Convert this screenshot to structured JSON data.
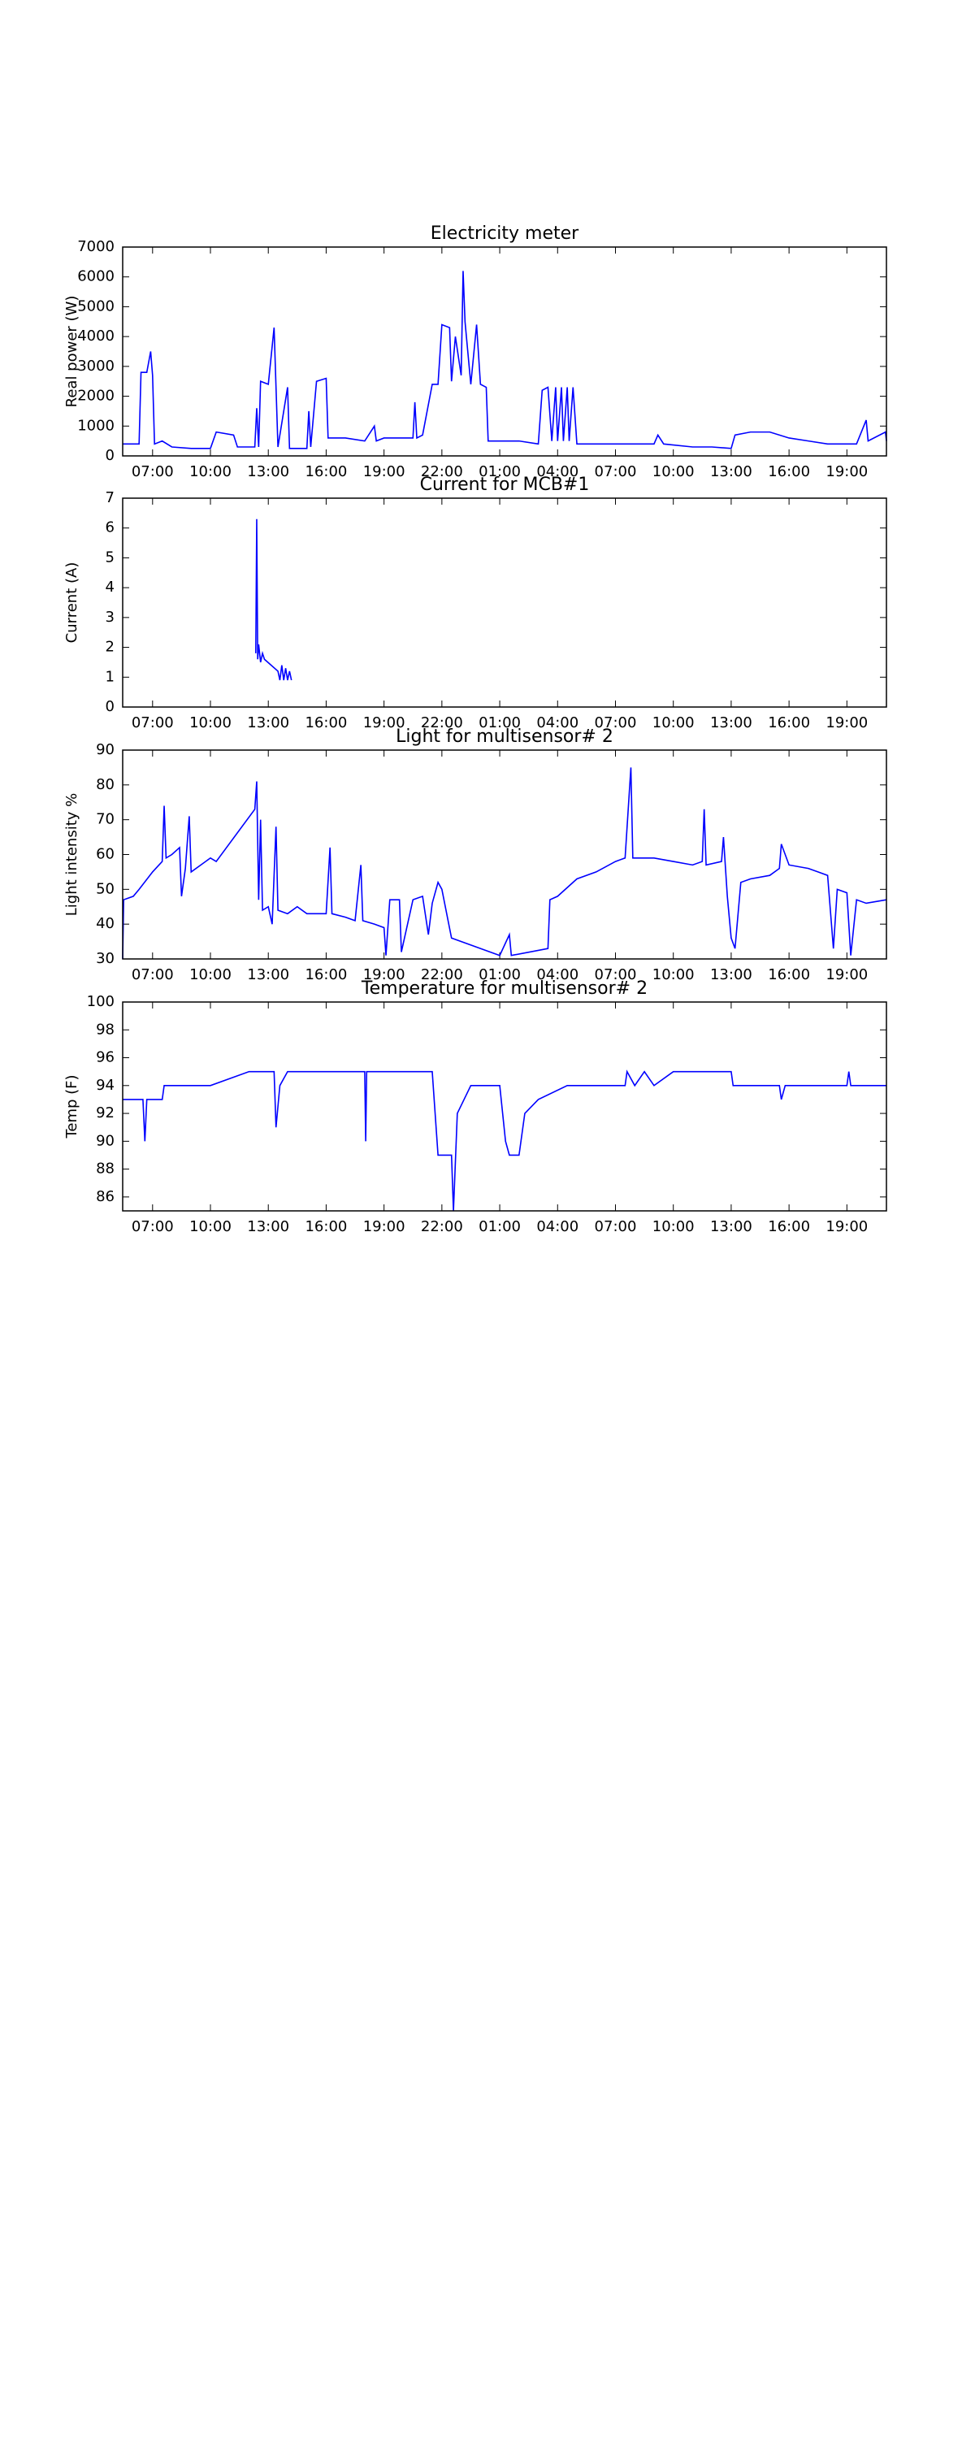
{
  "chart_data": [
    {
      "type": "line",
      "title": "Electricity meter",
      "y_label": "Real power (W)",
      "color": "#0000ff",
      "x": [
        5.45,
        6.3,
        6.4,
        6.7,
        6.9,
        7.0,
        7.1,
        7.5,
        8,
        9,
        10,
        10.3,
        11.2,
        11.4,
        12.3,
        12.4,
        12.5,
        12.6,
        13.0,
        13.3,
        13.5,
        14,
        14.1,
        15,
        15.1,
        15.2,
        15.5,
        16,
        16.1,
        17,
        18,
        18.5,
        18.6,
        19,
        20,
        20.5,
        20.6,
        20.7,
        21,
        21.5,
        21.8,
        22.0,
        22.4,
        22.5,
        22.7,
        23.0,
        23.1,
        23.2,
        23.5,
        23.8,
        24,
        24.3,
        24.4,
        25,
        26,
        27,
        27.2,
        27.5,
        27.7,
        27.9,
        28,
        28.2,
        28.3,
        28.5,
        28.6,
        28.8,
        29,
        30,
        31,
        33,
        33.2,
        33.5,
        35,
        36,
        37,
        37.2,
        38,
        39,
        40,
        41,
        42,
        43.5,
        44,
        44.1,
        45,
        45.05
      ],
      "values": [
        400,
        400,
        2800,
        2800,
        3500,
        2700,
        400,
        500,
        300,
        250,
        250,
        800,
        700,
        300,
        300,
        1600,
        300,
        2500,
        2400,
        4300,
        300,
        2300,
        250,
        250,
        1500,
        300,
        2500,
        2600,
        600,
        600,
        500,
        1000,
        500,
        600,
        600,
        600,
        1800,
        600,
        700,
        2400,
        2400,
        4400,
        4300,
        2500,
        4000,
        2700,
        6200,
        4500,
        2400,
        4400,
        2400,
        2300,
        500,
        500,
        500,
        400,
        2200,
        2300,
        500,
        2300,
        500,
        2300,
        500,
        2300,
        500,
        2300,
        400,
        400,
        400,
        400,
        700,
        400,
        300,
        300,
        250,
        700,
        800,
        800,
        600,
        500,
        400,
        400,
        1200,
        500,
        800,
        500
      ],
      "xlim": [
        5.45,
        45.05
      ],
      "xticks": [
        {
          "value": 7,
          "label": "07:00"
        },
        {
          "value": 10,
          "label": "10:00"
        },
        {
          "value": 13,
          "label": "13:00"
        },
        {
          "value": 16,
          "label": "16:00"
        },
        {
          "value": 19,
          "label": "19:00"
        },
        {
          "value": 22,
          "label": "22:00"
        },
        {
          "value": 25,
          "label": "01:00"
        },
        {
          "value": 28,
          "label": "04:00"
        },
        {
          "value": 31,
          "label": "07:00"
        },
        {
          "value": 34,
          "label": "10:00"
        },
        {
          "value": 37,
          "label": "13:00"
        },
        {
          "value": 40,
          "label": "16:00"
        },
        {
          "value": 43,
          "label": "19:00"
        }
      ],
      "ylim": [
        0,
        7000
      ],
      "yticks": [
        0,
        1000,
        2000,
        3000,
        4000,
        5000,
        6000,
        7000
      ]
    },
    {
      "type": "line",
      "title": "Current for MCB#1",
      "y_label": "Current (A)",
      "color": "#0000ff",
      "x": [
        12.35,
        12.4,
        12.45,
        12.5,
        12.6,
        12.7,
        12.8,
        13.5,
        13.6,
        13.7,
        13.8,
        13.9,
        14.0,
        14.1,
        14.2
      ],
      "values": [
        1.8,
        6.3,
        1.6,
        2.1,
        1.5,
        1.8,
        1.6,
        1.2,
        0.9,
        1.4,
        0.9,
        1.3,
        0.9,
        1.2,
        0.9
      ],
      "xlim": [
        5.45,
        45.05
      ],
      "xticks": [
        {
          "value": 7,
          "label": "07:00"
        },
        {
          "value": 10,
          "label": "10:00"
        },
        {
          "value": 13,
          "label": "13:00"
        },
        {
          "value": 16,
          "label": "16:00"
        },
        {
          "value": 19,
          "label": "19:00"
        },
        {
          "value": 22,
          "label": "22:00"
        },
        {
          "value": 25,
          "label": "01:00"
        },
        {
          "value": 28,
          "label": "04:00"
        },
        {
          "value": 31,
          "label": "07:00"
        },
        {
          "value": 34,
          "label": "10:00"
        },
        {
          "value": 37,
          "label": "13:00"
        },
        {
          "value": 40,
          "label": "16:00"
        },
        {
          "value": 43,
          "label": "19:00"
        }
      ],
      "ylim": [
        0,
        7
      ],
      "yticks": [
        0,
        1,
        2,
        3,
        4,
        5,
        6,
        7
      ]
    },
    {
      "type": "line",
      "title": "Light for multisensor# 2",
      "y_label": "Light intensity %",
      "color": "#0000ff",
      "x": [
        5.45,
        5.5,
        6,
        6.3,
        7,
        7.5,
        7.6,
        7.7,
        8,
        8.4,
        8.5,
        8.7,
        8.9,
        9,
        9.5,
        10,
        10.3,
        12.3,
        12.4,
        12.5,
        12.6,
        12.7,
        13,
        13.2,
        13.4,
        13.5,
        14,
        14.5,
        15,
        16,
        16.2,
        16.3,
        17,
        17.5,
        17.8,
        17.9,
        18.5,
        19,
        19.1,
        19.3,
        19.8,
        19.9,
        20.5,
        21,
        21.3,
        21.5,
        21.8,
        22,
        22.5,
        25,
        25.5,
        25.6,
        27.5,
        27.6,
        28,
        29,
        30,
        31,
        31.5,
        31.8,
        31.9,
        33,
        34,
        35,
        35.5,
        35.6,
        35.7,
        36.5,
        36.6,
        36.8,
        37,
        37.2,
        37.5,
        38,
        39,
        39.5,
        39.6,
        40,
        41,
        41.5,
        42,
        42.3,
        42.5,
        43,
        43.2,
        43.5,
        44,
        45.05
      ],
      "values": [
        30,
        47,
        48,
        50,
        55,
        58,
        74,
        59,
        60,
        62,
        48,
        56,
        71,
        55,
        57,
        59,
        58,
        73,
        81,
        47,
        70,
        44,
        45,
        40,
        68,
        44,
        43,
        45,
        43,
        43,
        62,
        43,
        42,
        41,
        57,
        41,
        40,
        39,
        31,
        47,
        47,
        32,
        47,
        48,
        37,
        46,
        52,
        50,
        36,
        31,
        37,
        31,
        33,
        47,
        48,
        53,
        55,
        58,
        59,
        85,
        59,
        59,
        58,
        57,
        58,
        73,
        57,
        58,
        65,
        48,
        36,
        33,
        52,
        53,
        54,
        56,
        63,
        57,
        56,
        55,
        54,
        33,
        50,
        49,
        31,
        47,
        46,
        47
      ],
      "xlim": [
        5.45,
        45.05
      ],
      "xticks": [
        {
          "value": 7,
          "label": "07:00"
        },
        {
          "value": 10,
          "label": "10:00"
        },
        {
          "value": 13,
          "label": "13:00"
        },
        {
          "value": 16,
          "label": "16:00"
        },
        {
          "value": 19,
          "label": "19:00"
        },
        {
          "value": 22,
          "label": "22:00"
        },
        {
          "value": 25,
          "label": "01:00"
        },
        {
          "value": 28,
          "label": "04:00"
        },
        {
          "value": 31,
          "label": "07:00"
        },
        {
          "value": 34,
          "label": "10:00"
        },
        {
          "value": 37,
          "label": "13:00"
        },
        {
          "value": 40,
          "label": "16:00"
        },
        {
          "value": 43,
          "label": "19:00"
        }
      ],
      "ylim": [
        30,
        90
      ],
      "yticks": [
        30,
        40,
        50,
        60,
        70,
        80,
        90
      ]
    },
    {
      "type": "line",
      "title": "Temperature for multisensor# 2",
      "y_label": "Temp (F)",
      "color": "#0000ff",
      "x": [
        5.45,
        6.5,
        6.6,
        6.7,
        7.5,
        7.6,
        10,
        12,
        13.3,
        13.4,
        13.6,
        14,
        18,
        18.05,
        18.1,
        21.5,
        21.8,
        22.5,
        22.6,
        22.8,
        23.5,
        25,
        25.3,
        25.5,
        26,
        26.3,
        27,
        28.5,
        31.5,
        31.6,
        32,
        32.5,
        33,
        34,
        37,
        37.1,
        39.5,
        39.6,
        39.8,
        43,
        43.1,
        43.2,
        45.05
      ],
      "values": [
        93,
        93,
        90,
        93,
        93,
        94,
        94,
        95,
        95,
        91,
        94,
        95,
        95,
        90,
        95,
        95,
        89,
        89,
        85,
        92,
        94,
        94,
        90,
        89,
        89,
        92,
        93,
        94,
        94,
        95,
        94,
        95,
        94,
        95,
        95,
        94,
        94,
        93,
        94,
        94,
        95,
        94,
        94
      ],
      "xlim": [
        5.45,
        45.05
      ],
      "xticks": [
        {
          "value": 7,
          "label": "07:00"
        },
        {
          "value": 10,
          "label": "10:00"
        },
        {
          "value": 13,
          "label": "13:00"
        },
        {
          "value": 16,
          "label": "16:00"
        },
        {
          "value": 19,
          "label": "19:00"
        },
        {
          "value": 22,
          "label": "22:00"
        },
        {
          "value": 25,
          "label": "01:00"
        },
        {
          "value": 28,
          "label": "04:00"
        },
        {
          "value": 31,
          "label": "07:00"
        },
        {
          "value": 34,
          "label": "10:00"
        },
        {
          "value": 37,
          "label": "13:00"
        },
        {
          "value": 40,
          "label": "16:00"
        },
        {
          "value": 43,
          "label": "19:00"
        }
      ],
      "ylim": [
        85,
        100
      ],
      "yticks": [
        86,
        88,
        90,
        92,
        94,
        96,
        98,
        100
      ]
    }
  ]
}
